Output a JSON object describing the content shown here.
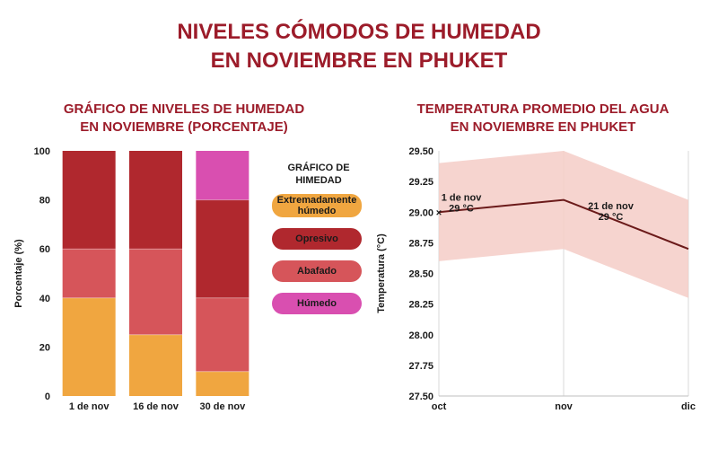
{
  "title_line1": "NIVELES CÓMODOS DE HUMEDAD",
  "title_line2": "EN NOVIEMBRE EN PHUKET",
  "colors": {
    "title": "#9c1c2a",
    "extremadamente_humedo": "#f0a640",
    "opresivo": "#b0282e",
    "abafado": "#d6555a",
    "humedo": "#d94fb0",
    "line": "#6b1a1a",
    "band": "#f5cdc7"
  },
  "chart_data": [
    {
      "type": "bar",
      "stacked": true,
      "title_line1": "GRÁFICO DE NIVELES DE HUMEDAD",
      "title_line2": "EN NOVIEMBRE (PORCENTAJE)",
      "ylabel": "Porcentaje (%)",
      "xlabel": "",
      "ylim": [
        0,
        100
      ],
      "yticks": [
        0,
        20,
        40,
        60,
        80,
        100
      ],
      "categories": [
        "1 de nov",
        "16 de nov",
        "30 de nov"
      ],
      "legend_title_line1": "GRÁFICO DE",
      "legend_title_line2": "HIMEDAD",
      "legend_placement": "right",
      "series": [
        {
          "name": "Extremadamente húmedo",
          "key": "extremadamente_humedo",
          "values": [
            40,
            25,
            10
          ]
        },
        {
          "name": "Abafado",
          "key": "abafado",
          "values": [
            20,
            35,
            30
          ]
        },
        {
          "name": "Opresivo",
          "key": "opresivo",
          "values": [
            40,
            40,
            40
          ]
        },
        {
          "name": "Húmedo",
          "key": "humedo",
          "values": [
            0,
            0,
            20
          ]
        }
      ],
      "legend_order": [
        "extremadamente_humedo",
        "opresivo",
        "abafado",
        "humedo"
      ]
    },
    {
      "type": "line",
      "title_line1": "TEMPERATURA PROMEDIO DEL AGUA",
      "title_line2": "EN NOVIEMBRE EN PHUKET",
      "ylabel": "Temperatura (°C)",
      "xlabel": "",
      "x": [
        0,
        1,
        2
      ],
      "xticks": [
        "oct",
        "nov",
        "dic"
      ],
      "ylim": [
        27.5,
        29.5
      ],
      "yticks": [
        "27.50",
        "27.75",
        "28.00",
        "28.25",
        "28.50",
        "28.75",
        "29.00",
        "29.25",
        "29.50"
      ],
      "grid": true,
      "series": [
        {
          "name": "",
          "values": [
            29.0,
            29.1,
            28.7
          ]
        }
      ],
      "band_upper": [
        29.4,
        29.5,
        29.1
      ],
      "band_lower": [
        28.6,
        28.7,
        28.3
      ],
      "annotations": [
        {
          "line1": "1 de nov",
          "line2": "29 °C",
          "x": 0,
          "y": 29.0,
          "marker": "×"
        },
        {
          "line1": "21 de nov",
          "line2": "29 °C",
          "x": 1.5,
          "y": 28.9
        }
      ]
    }
  ]
}
